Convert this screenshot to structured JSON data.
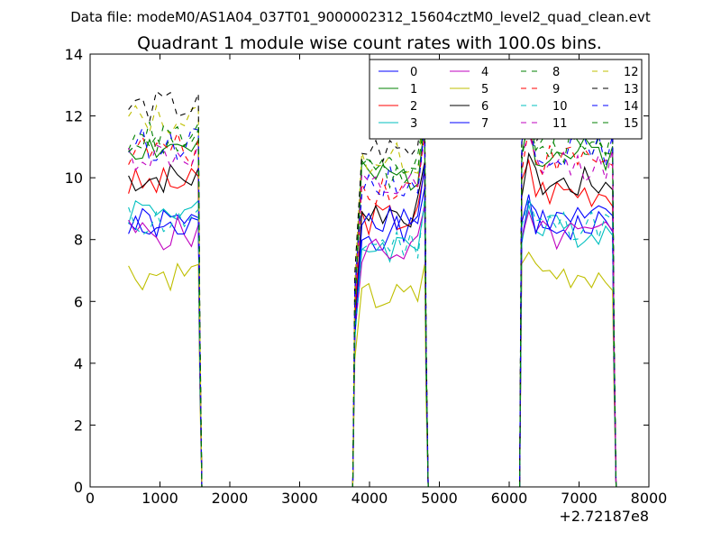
{
  "chart_data": {
    "type": "line",
    "suptitle": "Data file: modeM0/AS1A04_037T01_9000002312_15604cztM0_level2_quad_clean.evt",
    "title": "Quadrant 1 module wise count rates with 100.0s bins.",
    "xlabel": "",
    "ylabel": "",
    "x_offset_label": "+2.72187e8",
    "xlim": [
      0,
      8000
    ],
    "ylim": [
      0,
      14
    ],
    "xticks": [
      0,
      1000,
      2000,
      3000,
      4000,
      5000,
      6000,
      7000,
      8000
    ],
    "yticks": [
      0,
      2,
      4,
      6,
      8,
      10,
      12,
      14
    ],
    "xtick_labels": [
      "0",
      "1000",
      "2000",
      "3000",
      "4000",
      "5000",
      "6000",
      "7000",
      "8000"
    ],
    "ytick_labels": [
      "0",
      "2",
      "4",
      "6",
      "8",
      "10",
      "12",
      "14"
    ],
    "grid": false,
    "legend_position": "top-right",
    "legend_columns": 4,
    "segments": [
      {
        "x0": 550,
        "dx": 100,
        "n": 11
      },
      {
        "x0": 3790,
        "dx": 100,
        "n": 11
      },
      {
        "x0": 6180,
        "dx": 100,
        "n": 14
      }
    ],
    "series": [
      {
        "name": "0",
        "color": "#0000ff",
        "dash": "solid",
        "levels": [
          8.5,
          8.2,
          8.4
        ],
        "seed": 1
      },
      {
        "name": "1",
        "color": "#008000",
        "dash": "solid",
        "levels": [
          11.0,
          10.0,
          10.8
        ],
        "seed": 2
      },
      {
        "name": "2",
        "color": "#ff0000",
        "dash": "solid",
        "levels": [
          9.8,
          8.7,
          9.6
        ],
        "seed": 3
      },
      {
        "name": "3",
        "color": "#00bfbf",
        "dash": "solid",
        "levels": [
          9.0,
          7.8,
          8.3
        ],
        "seed": 4
      },
      {
        "name": "4",
        "color": "#bf00bf",
        "dash": "solid",
        "levels": [
          8.2,
          7.7,
          8.1
        ],
        "seed": 5
      },
      {
        "name": "5",
        "color": "#bfbf00",
        "dash": "solid",
        "levels": [
          6.9,
          6.1,
          6.9
        ],
        "seed": 6
      },
      {
        "name": "6",
        "color": "#000000",
        "dash": "solid",
        "levels": [
          10.0,
          8.9,
          9.8
        ],
        "seed": 7
      },
      {
        "name": "7",
        "color": "#0000ff",
        "dash": "solid",
        "levels": [
          8.3,
          8.8,
          8.6
        ],
        "seed": 8
      },
      {
        "name": "8",
        "color": "#008000",
        "dash": "dashed",
        "levels": [
          11.2,
          10.2,
          11.1
        ],
        "seed": 9
      },
      {
        "name": "9",
        "color": "#ff0000",
        "dash": "dashed",
        "levels": [
          10.9,
          9.7,
          10.6
        ],
        "seed": 10
      },
      {
        "name": "10",
        "color": "#00bfbf",
        "dash": "dashed",
        "levels": [
          8.6,
          7.9,
          8.5
        ],
        "seed": 11
      },
      {
        "name": "11",
        "color": "#bf00bf",
        "dash": "dashed",
        "levels": [
          10.7,
          9.6,
          10.4
        ],
        "seed": 12
      },
      {
        "name": "12",
        "color": "#bfbf00",
        "dash": "dashed",
        "levels": [
          11.9,
          10.6,
          11.5
        ],
        "seed": 13
      },
      {
        "name": "13",
        "color": "#000000",
        "dash": "dashed",
        "levels": [
          12.3,
          10.9,
          11.6
        ],
        "seed": 14
      },
      {
        "name": "14",
        "color": "#0000ff",
        "dash": "dashed",
        "levels": [
          11.1,
          9.9,
          10.9
        ],
        "seed": 15
      },
      {
        "name": "15",
        "color": "#008000",
        "dash": "dashed",
        "levels": [
          11.3,
          10.1,
          11.0
        ],
        "seed": 16
      }
    ]
  }
}
